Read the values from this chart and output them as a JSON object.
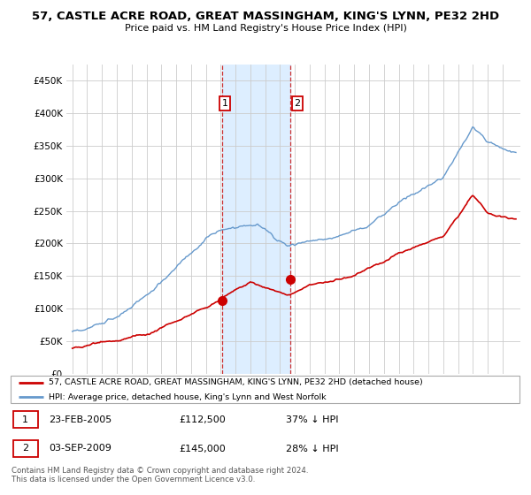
{
  "title": "57, CASTLE ACRE ROAD, GREAT MASSINGHAM, KING'S LYNN, PE32 2HD",
  "subtitle": "Price paid vs. HM Land Registry's House Price Index (HPI)",
  "legend_line1": "57, CASTLE ACRE ROAD, GREAT MASSINGHAM, KING'S LYNN, PE32 2HD (detached house)",
  "legend_line2": "HPI: Average price, detached house, King's Lynn and West Norfolk",
  "transaction1_date": "23-FEB-2005",
  "transaction1_price": "£112,500",
  "transaction1_hpi": "37% ↓ HPI",
  "transaction2_date": "03-SEP-2009",
  "transaction2_price": "£145,000",
  "transaction2_hpi": "28% ↓ HPI",
  "footnote": "Contains HM Land Registry data © Crown copyright and database right 2024.\nThis data is licensed under the Open Government Licence v3.0.",
  "red_color": "#cc0000",
  "blue_color": "#6699cc",
  "highlight_color": "#ddeeff",
  "vline_color": "#cc3333",
  "grid_color": "#cccccc",
  "background_color": "#ffffff",
  "ylim": [
    0,
    475000
  ],
  "yticks": [
    0,
    50000,
    100000,
    150000,
    200000,
    250000,
    300000,
    350000,
    400000,
    450000
  ],
  "xmin": 1994.6,
  "xmax": 2025.2,
  "t1_x": 2005.12,
  "t1_y": 112500,
  "t2_x": 2009.67,
  "t2_y": 145000
}
